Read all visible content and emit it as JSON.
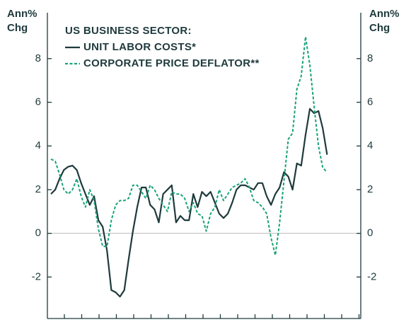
{
  "chart_data": {
    "type": "line",
    "ylabel_lines": [
      "Ann%",
      "Chg"
    ],
    "y2label_lines": [
      "Ann%",
      "Chg"
    ],
    "legend_title": "US BUSINESS SECTOR:",
    "categories": [
      null,
      null,
      null,
      null,
      null,
      null,
      null,
      null,
      null,
      null,
      null,
      null,
      null,
      null,
      null,
      null,
      null,
      null,
      null,
      null,
      null,
      null,
      null,
      null,
      null,
      null,
      null,
      null,
      null,
      null,
      null,
      null,
      null,
      null,
      null,
      null,
      null,
      null,
      null,
      null,
      null,
      null,
      null,
      null,
      null,
      null,
      null,
      null,
      null,
      null,
      null,
      null,
      null,
      null,
      null,
      null,
      null,
      null,
      null,
      null,
      null,
      null,
      null,
      null,
      null
    ],
    "series": [
      {
        "name": "UNIT LABOR COSTS*",
        "color": "#1f3a3d",
        "dash": false,
        "values": [
          1.8,
          2.0,
          2.5,
          2.9,
          3.05,
          3.1,
          2.9,
          2.3,
          1.8,
          1.3,
          1.7,
          0.6,
          0.3,
          -0.8,
          -2.6,
          -2.7,
          -2.9,
          -2.6,
          -1.2,
          0.1,
          1.2,
          2.1,
          2.1,
          1.3,
          1.1,
          0.5,
          1.8,
          2.0,
          2.2,
          0.5,
          0.8,
          0.6,
          0.6,
          1.8,
          1.2,
          1.9,
          1.7,
          1.9,
          1.4,
          0.9,
          0.7,
          0.9,
          1.4,
          2.0,
          2.2,
          2.2,
          2.1,
          2.0,
          2.3,
          2.3,
          1.7,
          1.3,
          1.8,
          2.1,
          2.8,
          2.6,
          2.0,
          3.2,
          3.1,
          4.5,
          5.7,
          5.5,
          5.6,
          4.8,
          3.6
        ]
      },
      {
        "name": "CORPORATE PRICE DEFLATOR**",
        "color": "#1aa37a",
        "dash": true,
        "values": [
          3.4,
          3.3,
          2.7,
          2.0,
          1.8,
          2.0,
          2.5,
          1.7,
          1.2,
          2.0,
          1.5,
          0.2,
          -0.6,
          -0.6,
          0.6,
          1.3,
          1.5,
          1.5,
          1.6,
          2.2,
          2.2,
          1.9,
          1.6,
          2.2,
          2.0,
          1.6,
          1.3,
          1.0,
          1.9,
          1.8,
          1.8,
          1.6,
          1.0,
          1.4,
          0.9,
          0.8,
          0.1,
          0.9,
          1.2,
          2.0,
          1.5,
          1.8,
          2.1,
          2.2,
          2.3,
          2.5,
          2.1,
          1.5,
          1.4,
          1.2,
          0.9,
          -0.2,
          -1.0,
          0.5,
          2.4,
          4.3,
          4.6,
          6.6,
          7.2,
          9.0,
          7.7,
          5.8,
          4.0,
          3.0,
          2.8
        ]
      }
    ],
    "ylim": [
      -3.9,
      10.1
    ],
    "yticks": [
      -2,
      0,
      2,
      4,
      6,
      8
    ],
    "y2lim": [
      -3.9,
      10.1
    ],
    "y2ticks": [
      -2,
      0,
      2,
      4,
      6,
      8
    ]
  }
}
